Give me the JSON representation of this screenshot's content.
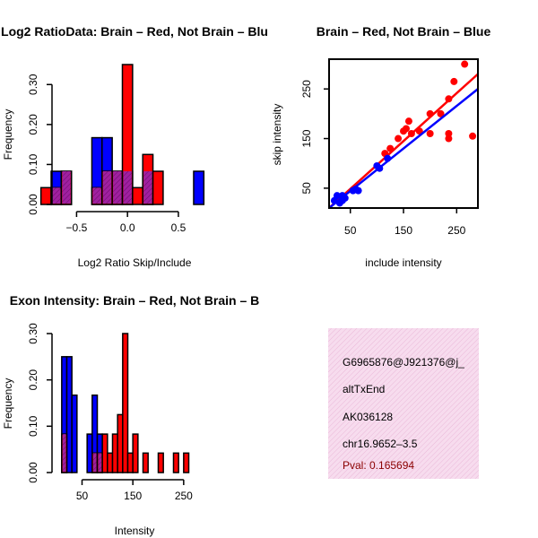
{
  "colors": {
    "red": "#ff0000",
    "blue": "#0000ff",
    "purple": "#a020a0",
    "info_bg": "#f7dcee",
    "pval": "#8b0000"
  },
  "chart_data": [
    {
      "type": "bar",
      "title": "Log2 RatioData: Brain – Red, Not Brain – Blu",
      "xlabel": "Log2 Ratio Skip/Include",
      "ylabel": "Frequency",
      "xlim": [
        -0.9,
        0.8
      ],
      "ylim": [
        0,
        0.35
      ],
      "xticks": [
        {
          "v": -0.5,
          "t": "−0.5"
        },
        {
          "v": 0.0,
          "t": "0.0"
        },
        {
          "v": 0.5,
          "t": "0.5"
        }
      ],
      "yticks": [
        {
          "v": 0.0,
          "t": "0.00"
        },
        {
          "v": 0.1,
          "t": "0.10"
        },
        {
          "v": 0.2,
          "t": "0.20"
        },
        {
          "v": 0.3,
          "t": "0.30"
        }
      ],
      "bin_width": 0.1,
      "bin_starts": [
        -0.85,
        -0.75,
        -0.65,
        -0.55,
        -0.45,
        -0.35,
        -0.25,
        -0.15,
        -0.05,
        0.05,
        0.15,
        0.25,
        0.35,
        0.45,
        0.55,
        0.65
      ],
      "series": [
        {
          "name": "Not Brain",
          "color": "blue",
          "values": [
            0,
            0.083,
            0.083,
            0,
            0,
            0.167,
            0.167,
            0.083,
            0.083,
            0,
            0.083,
            0,
            0,
            0,
            0,
            0.083
          ]
        },
        {
          "name": "Brain",
          "color": "red",
          "values": [
            0.042,
            0.042,
            0.083,
            0,
            0,
            0.042,
            0.083,
            0.083,
            0.35,
            0.042,
            0.125,
            0.083,
            0,
            0,
            0,
            0
          ]
        }
      ]
    },
    {
      "type": "scatter",
      "title": "Brain – Red, Not Brain – Blue",
      "xlabel": "include intensity",
      "ylabel": "skip intensity",
      "xlim": [
        10,
        290
      ],
      "ylim": [
        10,
        310
      ],
      "xticks": [
        {
          "v": 50,
          "t": "50"
        },
        {
          "v": 150,
          "t": "150"
        },
        {
          "v": 250,
          "t": "250"
        }
      ],
      "yticks": [
        {
          "v": 50,
          "t": "50"
        },
        {
          "v": 150,
          "t": "150"
        },
        {
          "v": 250,
          "t": "250"
        }
      ],
      "series": [
        {
          "name": "Brain",
          "color": "red",
          "points": [
            [
              115,
              120
            ],
            [
              125,
              130
            ],
            [
              140,
              150
            ],
            [
              150,
              165
            ],
            [
              155,
              170
            ],
            [
              160,
              185
            ],
            [
              165,
              160
            ],
            [
              180,
              165
            ],
            [
              200,
              160
            ],
            [
              200,
              200
            ],
            [
              220,
              200
            ],
            [
              235,
              230
            ],
            [
              235,
              160
            ],
            [
              235,
              150
            ],
            [
              245,
              265
            ],
            [
              265,
              300
            ],
            [
              280,
              155
            ]
          ],
          "fit": [
            [
              10,
              10
            ],
            [
              290,
              280
            ]
          ]
        },
        {
          "name": "Not Brain",
          "color": "blue",
          "points": [
            [
              20,
              25
            ],
            [
              25,
              35
            ],
            [
              30,
              20
            ],
            [
              35,
              25
            ],
            [
              40,
              30
            ],
            [
              35,
              35
            ],
            [
              55,
              45
            ],
            [
              60,
              48
            ],
            [
              65,
              45
            ],
            [
              100,
              95
            ],
            [
              105,
              90
            ],
            [
              120,
              110
            ]
          ],
          "fit": [
            [
              10,
              10
            ],
            [
              290,
              250
            ]
          ]
        }
      ]
    },
    {
      "type": "bar",
      "title": "Exon Intensity: Brain – Red, Not Brain – B",
      "xlabel": "Intensity",
      "ylabel": "Frequency",
      "xlim": [
        5,
        305
      ],
      "ylim": [
        0,
        0.3
      ],
      "xticks": [
        {
          "v": 50,
          "t": "50"
        },
        {
          "v": 150,
          "t": "150"
        },
        {
          "v": 250,
          "t": "250"
        }
      ],
      "yticks": [
        {
          "v": 0.0,
          "t": "0.00"
        },
        {
          "v": 0.1,
          "t": "0.10"
        },
        {
          "v": 0.2,
          "t": "0.20"
        },
        {
          "v": 0.3,
          "t": "0.30"
        }
      ],
      "bin_width": 10,
      "bin_starts": [
        10,
        20,
        30,
        40,
        50,
        60,
        70,
        80,
        90,
        100,
        110,
        120,
        130,
        140,
        150,
        160,
        170,
        180,
        190,
        200,
        210,
        220,
        230,
        240,
        250,
        260,
        270,
        280,
        290
      ],
      "series": [
        {
          "name": "Not Brain",
          "color": "blue",
          "values": [
            0.25,
            0.25,
            0.167,
            0,
            0,
            0.083,
            0.167,
            0.083,
            0,
            0,
            0,
            0,
            0,
            0,
            0,
            0,
            0,
            0,
            0,
            0,
            0,
            0,
            0,
            0,
            0,
            0,
            0,
            0,
            0
          ]
        },
        {
          "name": "Brain",
          "color": "red",
          "values": [
            0.083,
            0,
            0,
            0,
            0,
            0,
            0.042,
            0.042,
            0.083,
            0.042,
            0.083,
            0.125,
            0.3,
            0.042,
            0.083,
            0,
            0.042,
            0,
            0,
            0.042,
            0,
            0,
            0.042,
            0,
            0.042,
            0,
            0,
            0,
            0
          ]
        }
      ]
    }
  ],
  "info_panel": {
    "lines": [
      "G6965876@J921376@j_",
      "altTxEnd",
      "AK036128",
      "chr16.9652–3.5"
    ],
    "pval": "Pval: 0.165694"
  }
}
